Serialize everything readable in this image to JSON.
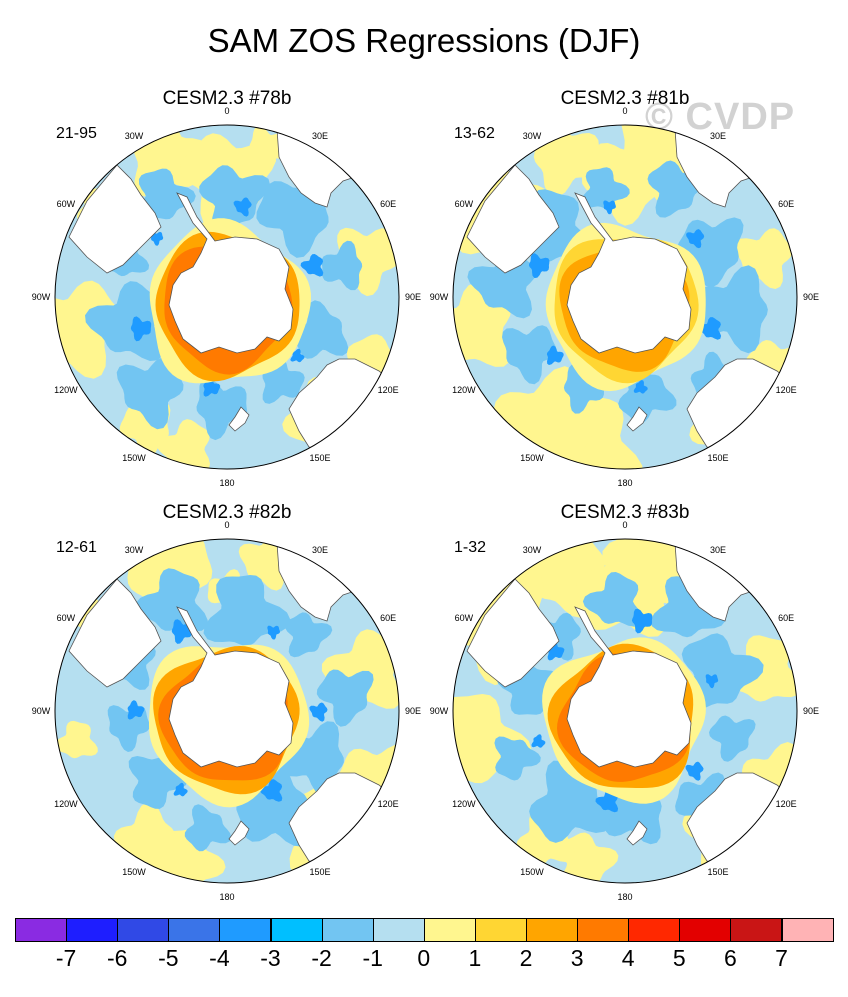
{
  "title": "SAM ZOS Regressions (DJF)",
  "watermark": "© CVDP",
  "panels": [
    {
      "name": "CESM2.3 #78b",
      "years": "21-95"
    },
    {
      "name": "CESM2.3 #81b",
      "years": "13-62"
    },
    {
      "name": "CESM2.3 #82b",
      "years": "12-61"
    },
    {
      "name": "CESM2.3 #83b",
      "years": "1-32"
    }
  ],
  "longitude_labels": [
    "0",
    "30E",
    "60E",
    "90E",
    "120E",
    "150E",
    "180",
    "150W",
    "120W",
    "90W",
    "60W",
    "30W"
  ],
  "colorbar": {
    "colors": [
      "#8a2be2",
      "#1e1eff",
      "#3049e6",
      "#3a74e8",
      "#1f9bff",
      "#00bfff",
      "#72c5f2",
      "#b5dff0",
      "#fff68f",
      "#ffd633",
      "#ffa500",
      "#ff7a00",
      "#ff2800",
      "#e30000",
      "#c91515",
      "#ffb3b5"
    ],
    "labels": [
      "-7",
      "-6",
      "-5",
      "-4",
      "-3",
      "-2",
      "-1",
      "0",
      "1",
      "2",
      "3",
      "4",
      "5",
      "6",
      "7"
    ]
  }
}
